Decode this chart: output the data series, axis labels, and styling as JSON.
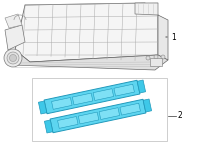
{
  "bg_color": "#ffffff",
  "part1_label": "1",
  "part2_label": "2",
  "gasket_color": "#3ec8e8",
  "gasket_fill": "#5dd5f0",
  "gasket_dark": "#2299bb",
  "gasket_light": "#7ee0f5",
  "box_edge_color": "#bbbbbb",
  "line_color": "#aaaaaa",
  "edge_color": "#888888",
  "label_color": "#000000",
  "lw": 0.5
}
